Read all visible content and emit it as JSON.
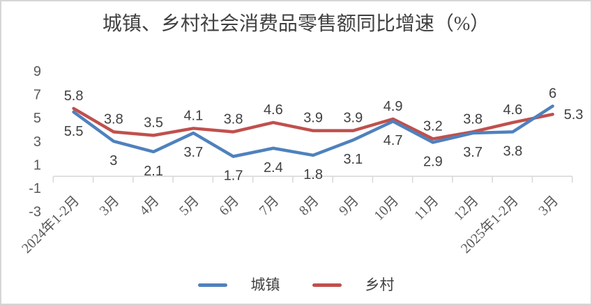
{
  "title": "城镇、乡村社会消费品零售额同比增速（%）",
  "chart_data": {
    "type": "line",
    "categories": [
      "2024年1-2月",
      "3月",
      "4月",
      "5月",
      "6月",
      "7月",
      "8月",
      "9月",
      "10月",
      "11月",
      "12月",
      "2025年1-2月",
      "3月"
    ],
    "series": [
      {
        "name": "城镇",
        "color": "#4F81BD",
        "values": [
          5.5,
          3,
          2.1,
          3.7,
          1.7,
          2.4,
          1.8,
          3.1,
          4.7,
          2.9,
          3.7,
          3.8,
          6
        ],
        "label_positions": [
          "below",
          "below",
          "below",
          "below",
          "below",
          "below",
          "below",
          "below",
          "below",
          "below",
          "below",
          "below",
          "above"
        ]
      },
      {
        "name": "乡村",
        "color": "#C0504D",
        "values": [
          5.8,
          3.8,
          3.5,
          4.1,
          3.8,
          4.6,
          3.9,
          3.9,
          4.9,
          3.2,
          3.8,
          4.6,
          5.3
        ],
        "label_positions": [
          "above",
          "above",
          "above",
          "above",
          "above",
          "above",
          "above",
          "above",
          "above",
          "above",
          "above",
          "above",
          "right"
        ]
      }
    ],
    "yticks": [
      9,
      7,
      5,
      3,
      1,
      -1,
      -3
    ],
    "ylim": [
      -3,
      9
    ],
    "grid": false,
    "data_labels": true,
    "legend_position": "bottom",
    "colors": {
      "axis": "#D9D9D9",
      "tick_text": "#595959",
      "data_label": "#404040",
      "title_text": "#404040"
    }
  }
}
